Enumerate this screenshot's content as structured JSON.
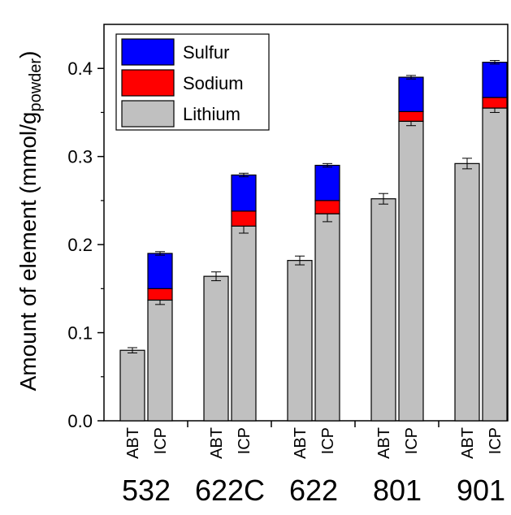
{
  "chart_data": {
    "type": "bar",
    "stacked": true,
    "ylabel_main": "Amount of element (mmol/g",
    "ylabel_sub": "powder",
    "ylabel_close": ")",
    "ylim": [
      0,
      0.45
    ],
    "yticks": [
      0.0,
      0.1,
      0.2,
      0.3,
      0.4
    ],
    "ytick_labels": [
      "0.0",
      "0.1",
      "0.2",
      "0.3",
      "0.4"
    ],
    "grid": false,
    "legend_position": "top-left",
    "groups": [
      "532",
      "622C",
      "622",
      "801",
      "901"
    ],
    "sublabels": [
      "ABT",
      "ICP"
    ],
    "series": [
      {
        "name": "Lithium",
        "color": "#c0c0c0"
      },
      {
        "name": "Sodium",
        "color": "#ff0000"
      },
      {
        "name": "Sulfur",
        "color": "#0000ff"
      }
    ],
    "legend_order": [
      "Sulfur",
      "Sodium",
      "Lithium"
    ],
    "bars": [
      {
        "group": "532",
        "method": "ABT",
        "values": [
          0.08
        ],
        "errors": [
          0.003
        ]
      },
      {
        "group": "532",
        "method": "ICP",
        "values": [
          0.137,
          0.013,
          0.04
        ],
        "errors": [
          0.005,
          0.0,
          0.002
        ]
      },
      {
        "group": "622C",
        "method": "ABT",
        "values": [
          0.164
        ],
        "errors": [
          0.005
        ]
      },
      {
        "group": "622C",
        "method": "ICP",
        "values": [
          0.221,
          0.017,
          0.041
        ],
        "errors": [
          0.008,
          0.0,
          0.002
        ]
      },
      {
        "group": "622",
        "method": "ABT",
        "values": [
          0.182
        ],
        "errors": [
          0.005
        ]
      },
      {
        "group": "622",
        "method": "ICP",
        "values": [
          0.235,
          0.015,
          0.04
        ],
        "errors": [
          0.009,
          0.0,
          0.002
        ]
      },
      {
        "group": "801",
        "method": "ABT",
        "values": [
          0.252
        ],
        "errors": [
          0.006
        ]
      },
      {
        "group": "801",
        "method": "ICP",
        "values": [
          0.34,
          0.011,
          0.039
        ],
        "errors": [
          0.005,
          0.0,
          0.002
        ]
      },
      {
        "group": "901",
        "method": "ABT",
        "values": [
          0.292
        ],
        "errors": [
          0.006
        ]
      },
      {
        "group": "901",
        "method": "ICP",
        "values": [
          0.355,
          0.012,
          0.04
        ],
        "errors": [
          0.005,
          0.0,
          0.002
        ]
      }
    ]
  }
}
